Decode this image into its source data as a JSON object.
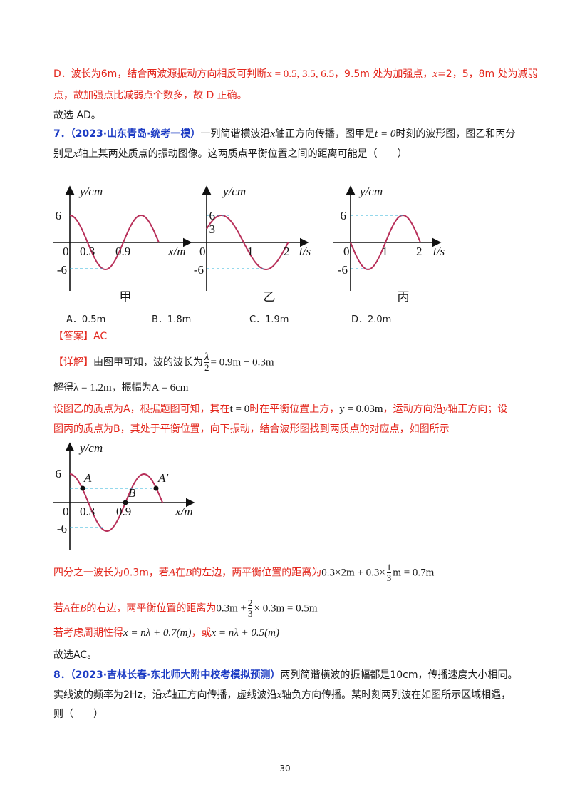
{
  "option_d_explanation": [
    "D．波长为6m，结合两波源振动方向相反可判断",
    "x = 0.5, 3.5, 6.5",
    "，9.5m 处为加强点，",
    "x",
    "=2，5，8m 处为减弱",
    "点，故加强点比减弱点个数多，故 D 正确。"
  ],
  "q6_answer": "故选 AD。",
  "question7": {
    "number": "7．",
    "source": "（2023·山东青岛·统考一模）",
    "stem": [
      [
        "一列简谐横波沿",
        "x",
        "轴正方向传播，图甲是",
        "t = 0",
        "时刻的波形图，图乙和丙分"
      ],
      [
        "别是",
        "x",
        "轴上某两处质点的振动图像。这两质点平衡位置之间的距离可能是（　　）"
      ]
    ],
    "figures": [
      {
        "y_label": "y/cm",
        "x_label": "x/m",
        "ticks": [
          "6",
          "-6",
          "0",
          "0.3",
          "0.9"
        ],
        "caption": "甲"
      },
      {
        "y_label": "y/cm",
        "x_label": "t/s",
        "ticks": [
          "6",
          "3",
          "-6",
          "0",
          "1",
          "2"
        ],
        "caption": "乙"
      },
      {
        "y_label": "y/cm",
        "x_label": "t/s",
        "ticks": [
          "6",
          "-6",
          "0",
          "1",
          "2"
        ],
        "caption": "丙"
      }
    ],
    "options": [
      "A．0.5m",
      "B．1.8m",
      "C．1.9m",
      "D．2.0m"
    ],
    "answer": "【答案】AC",
    "explanation": {
      "line1": [
        "【详解】",
        "由图甲可知，波的波长为",
        "λ",
        "2",
        "= 0.9m − 0.3m"
      ],
      "line2": [
        "解得",
        "λ = 1.2m",
        "，振幅为",
        "A = 6cm"
      ],
      "line3": [
        "设图乙的质点为A，根据题图可知，其在",
        "t = 0",
        "时在平衡位置上方，",
        "y = 0.03m",
        "，运动方向沿",
        "y",
        "轴正方向；设"
      ],
      "line4": "图丙的质点为B，其处于平衡位置，向下振动，结合波形图找到两质点的对应点，如图所示",
      "figure": {
        "y_label": "y/cm",
        "x_label": "x/m",
        "ticks": [
          "6",
          "-6",
          "0",
          "0.3",
          "0.9"
        ],
        "points": [
          "A",
          "B",
          "A′"
        ]
      },
      "line5": [
        "四分之一波长为0.3m，若",
        "A",
        "在",
        "B",
        "的左边，两平衡位置的距离为",
        "0.3×2m + 0.3×",
        "1",
        "3",
        "m = 0.7m"
      ],
      "line6": [
        "若",
        "A",
        "在",
        "B",
        "的右边，两平衡位置的距离为",
        "0.3m +",
        "2",
        "3",
        "× 0.3m = 0.5m"
      ],
      "line7": [
        "若考虑周期性得",
        "x = nλ + 0.7(m)",
        "，或",
        "x = nλ + 0.5(m)"
      ],
      "conclusion": "故选AC。"
    }
  },
  "question8": {
    "number": "8．",
    "source": "（2023·吉林长春·东北师大附中校考模拟预测）",
    "stem": [
      [
        "两列简谐横波的振幅都是10cm，传播速度大小相同。"
      ],
      [
        "实线波的频率为2Hz，沿",
        "x",
        "轴正方向传播，虚线波沿",
        "x",
        "轴负方向传播。某时刻两列波在如图所示区域相遇，"
      ],
      [
        "则（　　）"
      ]
    ]
  },
  "page_number": "30"
}
